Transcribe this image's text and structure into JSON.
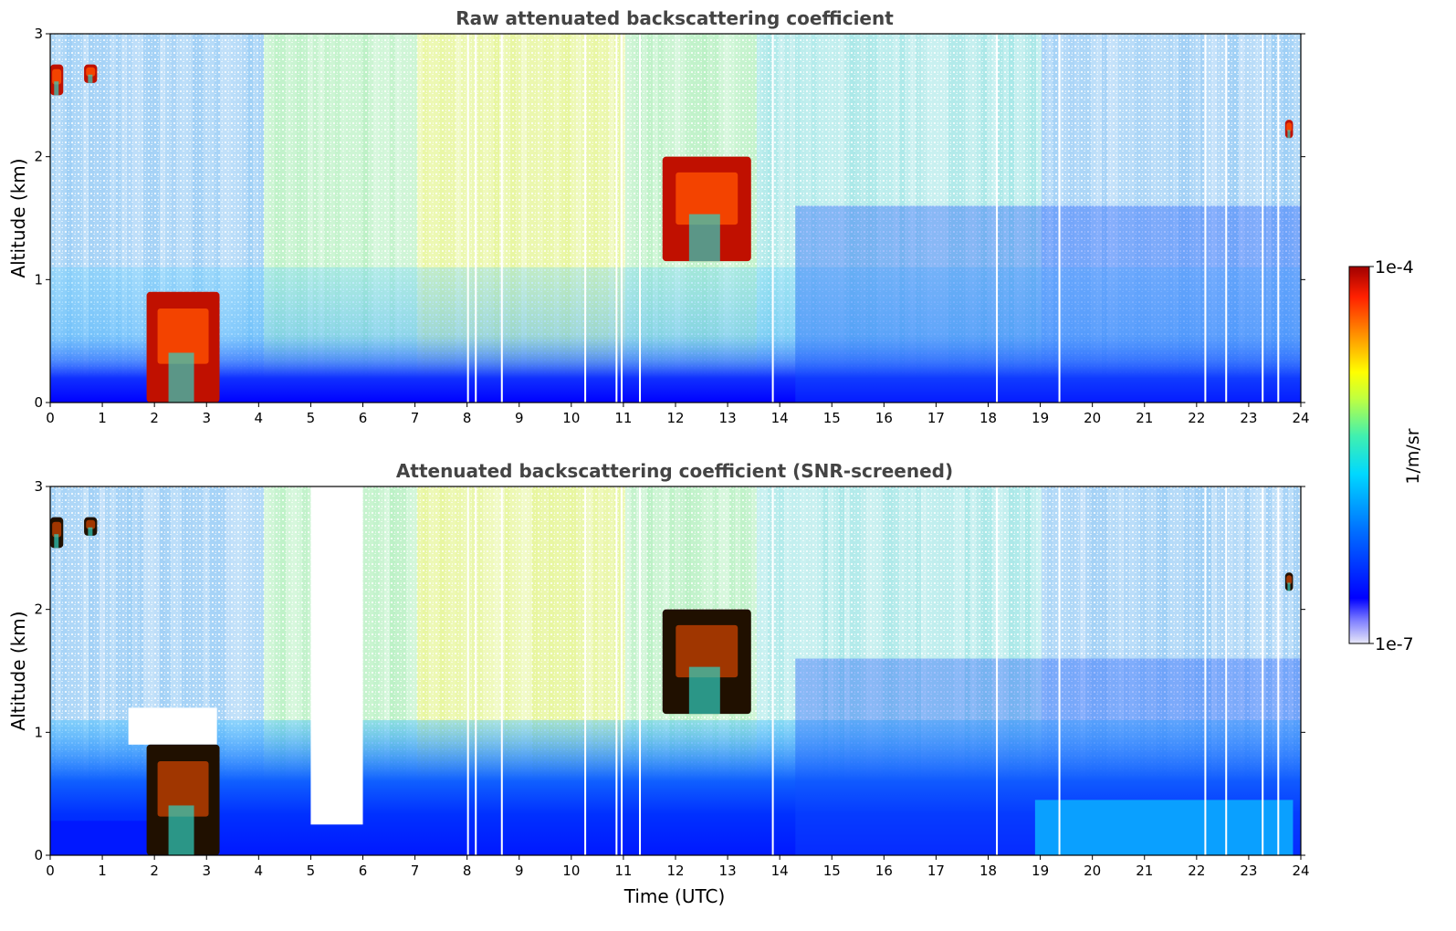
{
  "chart_data": [
    {
      "type": "heatmap",
      "title": "Raw attenuated backscattering coefficient",
      "xlabel": "",
      "ylabel": "Altitude (km)",
      "xlim": [
        0,
        24
      ],
      "ylim": [
        0,
        3
      ],
      "x_ticks": [
        "0",
        "1",
        "2",
        "3",
        "4",
        "5",
        "6",
        "7",
        "8",
        "9",
        "10",
        "11",
        "12",
        "13",
        "14",
        "15",
        "16",
        "17",
        "18",
        "19",
        "20",
        "21",
        "22",
        "23",
        "24"
      ],
      "y_ticks": [
        "0",
        "1",
        "2",
        "3"
      ],
      "features": [
        {
          "kind": "cloud",
          "time_range": [
            0.0,
            0.25
          ],
          "altitude_range": [
            2.5,
            2.75
          ]
        },
        {
          "kind": "cloud",
          "time_range": [
            0.65,
            0.9
          ],
          "altitude_range": [
            2.6,
            2.75
          ]
        },
        {
          "kind": "cloud",
          "time_range": [
            1.85,
            3.25
          ],
          "altitude_range": [
            0.0,
            0.9
          ]
        },
        {
          "kind": "cloud",
          "time_range": [
            11.75,
            13.45
          ],
          "altitude_range": [
            1.15,
            2.0
          ]
        },
        {
          "kind": "cloud",
          "time_range": [
            23.7,
            23.85
          ],
          "altitude_range": [
            2.15,
            2.3
          ]
        }
      ],
      "gaps_time": [
        8.0,
        8.15,
        8.65,
        10.25,
        10.85,
        10.95,
        11.3,
        13.85,
        18.15,
        19.35,
        22.15,
        22.55,
        23.25,
        23.55
      ]
    },
    {
      "type": "heatmap",
      "title": "Attenuated backscattering coefficient (SNR-screened)",
      "xlabel": "Time (UTC)",
      "ylabel": "Altitude (km)",
      "xlim": [
        0,
        24
      ],
      "ylim": [
        0,
        3
      ],
      "x_ticks": [
        "0",
        "1",
        "2",
        "3",
        "4",
        "5",
        "6",
        "7",
        "8",
        "9",
        "10",
        "11",
        "12",
        "13",
        "14",
        "15",
        "16",
        "17",
        "18",
        "19",
        "20",
        "21",
        "22",
        "23",
        "24"
      ],
      "y_ticks": [
        "0",
        "1",
        "2",
        "3"
      ],
      "features": [
        {
          "kind": "cloud",
          "time_range": [
            0.0,
            0.25
          ],
          "altitude_range": [
            2.5,
            2.75
          ]
        },
        {
          "kind": "cloud",
          "time_range": [
            0.65,
            0.9
          ],
          "altitude_range": [
            2.6,
            2.75
          ]
        },
        {
          "kind": "cloud",
          "time_range": [
            1.85,
            3.25
          ],
          "altitude_range": [
            0.0,
            0.9
          ]
        },
        {
          "kind": "cloud",
          "time_range": [
            11.75,
            13.45
          ],
          "altitude_range": [
            1.15,
            2.0
          ]
        },
        {
          "kind": "cloud",
          "time_range": [
            23.7,
            23.85
          ],
          "altitude_range": [
            2.15,
            2.3
          ]
        }
      ],
      "screened_out": [
        {
          "time_range": [
            5.0,
            6.0
          ],
          "altitude_range": [
            0.25,
            3.0
          ]
        },
        {
          "time_range": [
            1.5,
            3.2
          ],
          "altitude_range": [
            0.9,
            1.2
          ]
        }
      ],
      "gaps_time": [
        8.0,
        8.15,
        8.65,
        10.25,
        10.85,
        10.95,
        11.3,
        13.85,
        18.15,
        19.35,
        22.15,
        22.55,
        23.25,
        23.55
      ]
    }
  ],
  "colorbar": {
    "label": "1/m/sr",
    "max_label": "1e-4",
    "min_label": "1e-7",
    "scale": "log",
    "range": [
      1e-07,
      0.0001
    ],
    "colormap": [
      "#e8e8f8",
      "#0000ff",
      "#0080ff",
      "#00d8ff",
      "#40f0c0",
      "#c0ff40",
      "#ffff00",
      "#ff9000",
      "#ff2000",
      "#a00000"
    ]
  }
}
